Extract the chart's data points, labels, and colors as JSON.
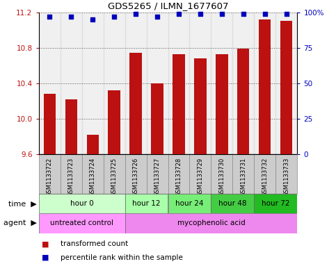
{
  "title": "GDS5265 / ILMN_1677607",
  "samples": [
    "GSM1133722",
    "GSM1133723",
    "GSM1133724",
    "GSM1133725",
    "GSM1133726",
    "GSM1133727",
    "GSM1133728",
    "GSM1133729",
    "GSM1133730",
    "GSM1133731",
    "GSM1133732",
    "GSM1133733"
  ],
  "bar_values": [
    10.28,
    10.22,
    9.82,
    10.32,
    10.74,
    10.4,
    10.73,
    10.68,
    10.73,
    10.79,
    11.12,
    11.1
  ],
  "percentile_values": [
    97,
    97,
    95,
    97,
    99,
    97,
    99,
    99,
    99,
    99,
    99,
    99
  ],
  "bar_color": "#BB1111",
  "percentile_color": "#0000BB",
  "ylim_left": [
    9.6,
    11.2
  ],
  "ylim_right": [
    0,
    100
  ],
  "yticks_left": [
    9.6,
    10.0,
    10.4,
    10.8,
    11.2
  ],
  "yticks_right": [
    0,
    25,
    50,
    75,
    100
  ],
  "ytick_labels_right": [
    "0",
    "25",
    "50",
    "75",
    "100%"
  ],
  "grid_color": "#555555",
  "time_groups": [
    {
      "label": "hour 0",
      "start": 0,
      "end": 4,
      "color": "#ccffcc"
    },
    {
      "label": "hour 12",
      "start": 4,
      "end": 6,
      "color": "#aaffaa"
    },
    {
      "label": "hour 24",
      "start": 6,
      "end": 8,
      "color": "#77ee77"
    },
    {
      "label": "hour 48",
      "start": 8,
      "end": 10,
      "color": "#44cc44"
    },
    {
      "label": "hour 72",
      "start": 10,
      "end": 12,
      "color": "#22bb22"
    }
  ],
  "agent_groups": [
    {
      "label": "untreated control",
      "start": 0,
      "end": 4,
      "color": "#ff99ff"
    },
    {
      "label": "mycophenolic acid",
      "start": 4,
      "end": 12,
      "color": "#ee88ee"
    }
  ],
  "legend_bar_label": "transformed count",
  "legend_pct_label": "percentile rank within the sample",
  "sample_bg_color": "#cccccc",
  "bar_width": 0.55
}
